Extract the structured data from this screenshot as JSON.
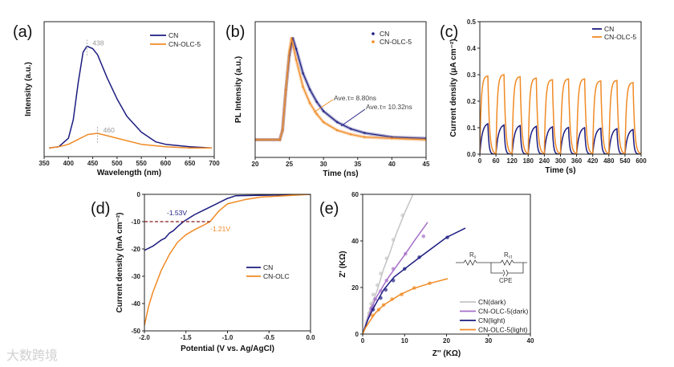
{
  "watermark": "大数跨境",
  "colors": {
    "cn": "#1c1c80",
    "olc": "#f08a24",
    "grey": "#c4c4c4",
    "purple": "#a66fc9",
    "dash": "#8b1a1a"
  },
  "chart_data": [
    {
      "id": "a",
      "panel_label": "(a)",
      "type": "line",
      "xlabel": "Wavelength (nm)",
      "ylabel": "Intensity (a.u.)",
      "xlim": [
        350,
        700
      ],
      "ylim": [
        0,
        1.1
      ],
      "xticks": [
        350,
        400,
        450,
        500,
        550,
        600,
        650,
        700
      ],
      "yticks": [],
      "series": [
        {
          "name": "CN",
          "color": "cn",
          "x": [
            360,
            380,
            400,
            410,
            420,
            430,
            438,
            450,
            460,
            480,
            500,
            520,
            550,
            580,
            600,
            650,
            695
          ],
          "y": [
            0.07,
            0.08,
            0.15,
            0.3,
            0.6,
            0.85,
            0.9,
            0.88,
            0.83,
            0.64,
            0.47,
            0.33,
            0.2,
            0.12,
            0.1,
            0.08,
            0.07
          ]
        },
        {
          "name": "CN-OLC-5",
          "color": "olc",
          "x": [
            360,
            380,
            400,
            420,
            440,
            460,
            480,
            500,
            550,
            600,
            650,
            695
          ],
          "y": [
            0.07,
            0.08,
            0.1,
            0.14,
            0.18,
            0.19,
            0.17,
            0.15,
            0.1,
            0.08,
            0.07,
            0.07
          ]
        }
      ],
      "annotations": [
        {
          "text": "438",
          "x": 438,
          "y": 0.9
        },
        {
          "text": "460",
          "x": 460,
          "y": 0.19
        }
      ]
    },
    {
      "id": "b",
      "panel_label": "(b)",
      "type": "scatter",
      "xlabel": "Time (ns)",
      "ylabel": "PL Intensity (a.u.)",
      "xlim": [
        20,
        45
      ],
      "ylim": [
        0,
        1
      ],
      "xticks": [
        20,
        25,
        30,
        35,
        40,
        45
      ],
      "yticks": [],
      "series": [
        {
          "name": "CN",
          "color": "cn",
          "x": [
            20,
            23.6,
            24,
            24.5,
            25,
            25.5,
            26,
            27,
            28,
            29,
            30,
            32,
            34,
            36,
            40,
            45
          ],
          "y": [
            0.13,
            0.13,
            0.2,
            0.5,
            0.75,
            0.88,
            0.8,
            0.62,
            0.5,
            0.41,
            0.34,
            0.26,
            0.21,
            0.18,
            0.15,
            0.14
          ]
        },
        {
          "name": "CN-OLC-5",
          "color": "olc",
          "x": [
            20,
            23.6,
            24,
            24.5,
            25,
            25.3,
            26,
            27,
            28,
            29,
            30,
            32,
            34,
            36,
            40,
            45
          ],
          "y": [
            0.13,
            0.13,
            0.2,
            0.5,
            0.78,
            0.88,
            0.72,
            0.52,
            0.4,
            0.32,
            0.26,
            0.2,
            0.17,
            0.15,
            0.14,
            0.13
          ]
        }
      ],
      "annotations": [
        {
          "text": "Ave.τ= 8.80ns",
          "series": "CN-OLC-5"
        },
        {
          "text": "Ave.τ= 10.32ns",
          "series": "CN"
        }
      ]
    },
    {
      "id": "c",
      "panel_label": "(c)",
      "type": "line",
      "xlabel": "Time (s)",
      "ylabel": "Current density (μA cm⁻²)",
      "xlim": [
        0,
        600
      ],
      "ylim": [
        0,
        0.5
      ],
      "xticks": [
        0,
        60,
        120,
        180,
        240,
        300,
        360,
        420,
        480,
        540,
        600
      ],
      "yticks": [
        0.0,
        0.1,
        0.2,
        0.3,
        0.4,
        0.5
      ],
      "ytick_labels": [
        "0.0",
        "0.1",
        "0.2",
        "0.3",
        "0.4",
        "0.5"
      ],
      "cycle_period_s": 60,
      "light_on_s": 30,
      "series": [
        {
          "name": "CN",
          "color": "cn",
          "cycle_peaks": [
            0.115,
            0.11,
            0.108,
            0.105,
            0.103,
            0.101,
            0.1,
            0.098,
            0.096,
            0.093
          ]
        },
        {
          "name": "CN-OLC-5",
          "color": "olc",
          "cycle_peaks": [
            0.295,
            0.3,
            0.292,
            0.287,
            0.281,
            0.284,
            0.284,
            0.276,
            0.278,
            0.27
          ]
        }
      ]
    },
    {
      "id": "d",
      "panel_label": "(d)",
      "type": "line",
      "xlabel": "Potential (V vs. Ag/AgCl)",
      "ylabel": "Current density (mA cm⁻²)",
      "xlim": [
        -2.0,
        0.0
      ],
      "ylim": [
        -50,
        0
      ],
      "xticks": [
        -2.0,
        -1.5,
        -1.0,
        -0.5,
        0.0
      ],
      "xtick_labels": [
        "-2.0",
        "-1.5",
        "-1.0",
        "-0.5",
        "0.0"
      ],
      "yticks": [
        0,
        -10,
        -20,
        -30,
        -40,
        -50
      ],
      "ytick_labels": [
        "0",
        "-10",
        "-20",
        "-30",
        "-40",
        "-50"
      ],
      "series": [
        {
          "name": "CN",
          "color": "cn",
          "x": [
            -2,
            -1.9,
            -1.8,
            -1.75,
            -1.7,
            -1.65,
            -1.6,
            -1.53,
            -1.4,
            -1.2,
            -1.0,
            -0.9,
            -0.5,
            0
          ],
          "y": [
            -20.5,
            -19,
            -16.8,
            -16,
            -14.2,
            -13.3,
            -11.8,
            -10,
            -7.5,
            -4.5,
            -1.5,
            -0.5,
            -0.3,
            0
          ]
        },
        {
          "name": "CN-OLC",
          "color": "olc",
          "x": [
            -2,
            -1.95,
            -1.9,
            -1.8,
            -1.7,
            -1.6,
            -1.5,
            -1.4,
            -1.3,
            -1.21,
            -1.1,
            -1.0,
            -0.8,
            -0.6,
            -0.3,
            0
          ],
          "y": [
            -48,
            -41,
            -36,
            -28,
            -22,
            -17.5,
            -14.8,
            -13,
            -11.5,
            -10,
            -6,
            -3.5,
            -2,
            -1,
            -0.5,
            0
          ]
        }
      ],
      "reference_line": {
        "y": -10,
        "x_from": -2.0,
        "x_to": -1.21
      },
      "annotations": [
        {
          "text": "-1.53V",
          "x": -1.53,
          "y": -10,
          "color": "cn"
        },
        {
          "text": "-1.21V",
          "x": -1.21,
          "y": -10,
          "color": "olc"
        }
      ]
    },
    {
      "id": "e",
      "panel_label": "(e)",
      "type": "scatter",
      "xlabel": "Z'' (KΩ)",
      "ylabel": "Z' (KΩ)",
      "xlim": [
        0,
        40
      ],
      "ylim": [
        0,
        60
      ],
      "xticks": [
        0,
        10,
        20,
        30,
        40
      ],
      "yticks": [
        0,
        20,
        40,
        60
      ],
      "series": [
        {
          "name": "CN(dark)",
          "color": "grey",
          "fit": {
            "x": [
              0,
              1,
              2,
              3.5,
              5,
              6.5,
              8,
              10,
              12
            ],
            "y": [
              0,
              6.5,
              12,
              19,
              28,
              35,
              43,
              52,
              60
            ]
          },
          "points": {
            "x": [
              1.5,
              2,
              2.5,
              3.5,
              4.3,
              5.7,
              7.3,
              9.5
            ],
            "y": [
              9,
              13,
              17,
              21,
              26,
              32.5,
              40.5,
              51
            ]
          }
        },
        {
          "name": "CN-OLC-5(dark)",
          "color": "purple",
          "fit": {
            "x": [
              0,
              1.5,
              3,
              4.5,
              6,
              8,
              10,
              12.5,
              15.5
            ],
            "y": [
              0,
              8,
              15,
              19.5,
              24,
              29,
              34,
              40.5,
              48
            ]
          },
          "points": {
            "x": [
              2,
              2.5,
              3,
              4.3,
              5.7,
              7.3,
              10.2,
              14.5
            ],
            "y": [
              11,
              12,
              15,
              18.5,
              23,
              28,
              34.5,
              42
            ]
          }
        },
        {
          "name": "CN(light)",
          "color": "cn",
          "fit": {
            "x": [
              0,
              1.2,
              2.5,
              5,
              7.5,
              10,
              14,
              20,
              24.5
            ],
            "y": [
              0,
              6,
              11,
              19,
              24.5,
              28,
              33.5,
              41.5,
              45.5
            ]
          },
          "points": {
            "x": [
              2.5,
              4.3,
              5.5,
              7.3,
              10,
              13.5,
              20.2
            ],
            "y": [
              10.5,
              15.5,
              19,
              23,
              28,
              33,
              41.5
            ]
          }
        },
        {
          "name": "CN-OLC-5(light)",
          "color": "olc",
          "fit": {
            "x": [
              0,
              0.7,
              1.5,
              3,
              5,
              9,
              12,
              16,
              20.3
            ],
            "y": [
              0,
              2.8,
              5,
              9,
              12.5,
              17,
              19.5,
              21.8,
              23.8
            ]
          },
          "points": {
            "x": [
              2.3,
              3.8,
              5,
              7,
              9.3,
              12.3,
              16
            ],
            "y": [
              8,
              10.5,
              12.5,
              15,
              17,
              19.8,
              21.8
            ]
          }
        }
      ],
      "circuit": {
        "r1": "R",
        "r1_sub": "s",
        "r2": "R",
        "r2_sub": "ct",
        "cpe": "CPE"
      }
    }
  ]
}
